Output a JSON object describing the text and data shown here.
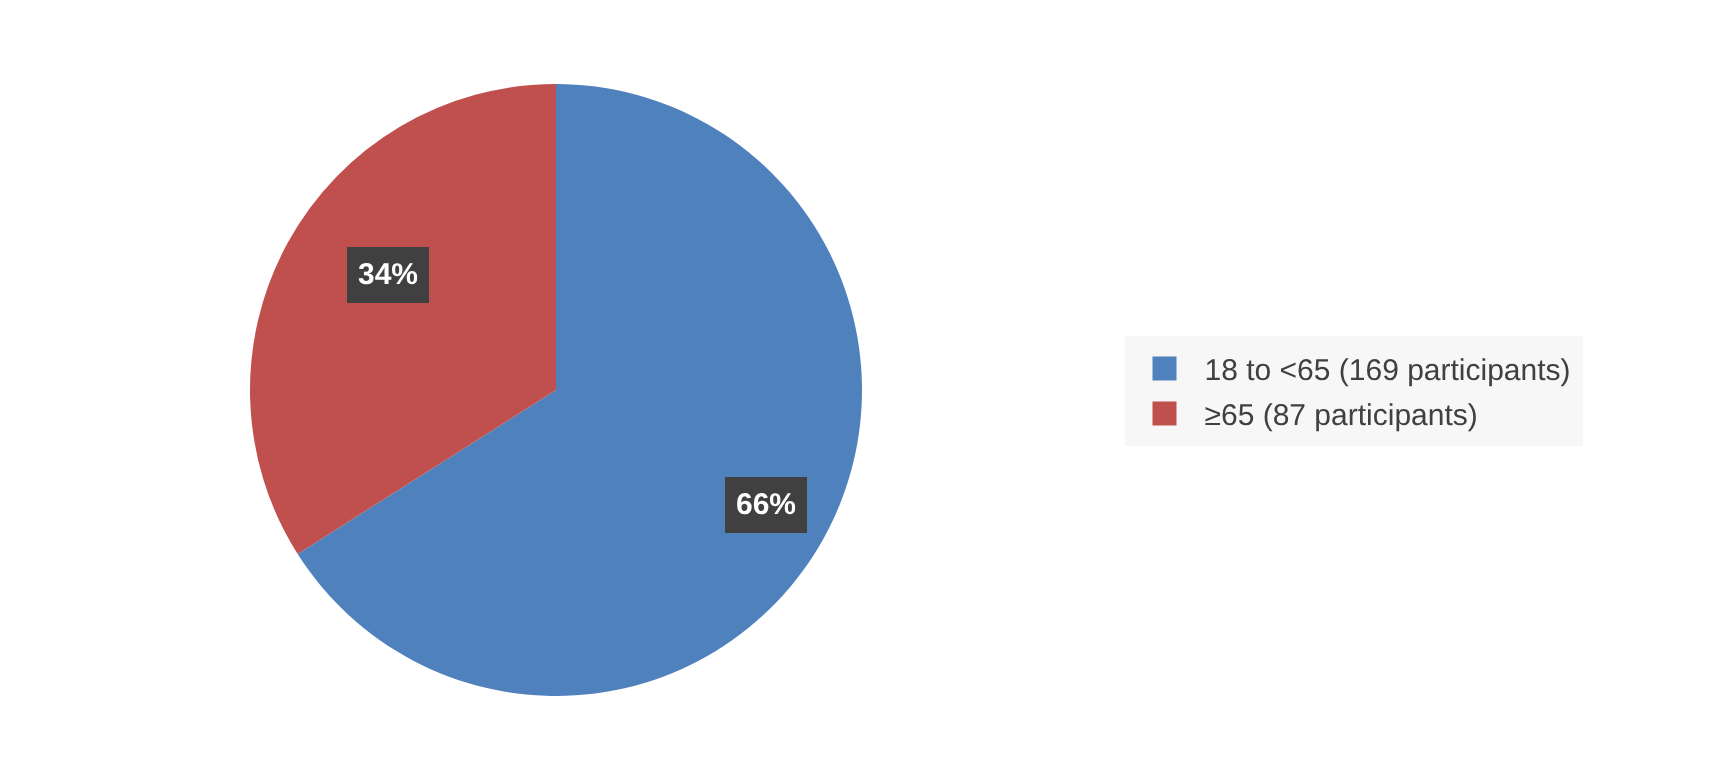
{
  "chart_data": {
    "type": "pie",
    "categories": [
      "18 to <65 (169 participants)",
      "≥65 (87 participants)"
    ],
    "values": [
      66,
      34
    ],
    "colors": [
      "#4f81bd",
      "#c0504d"
    ],
    "value_labels": [
      "66%",
      "34%"
    ],
    "legend": "right"
  }
}
